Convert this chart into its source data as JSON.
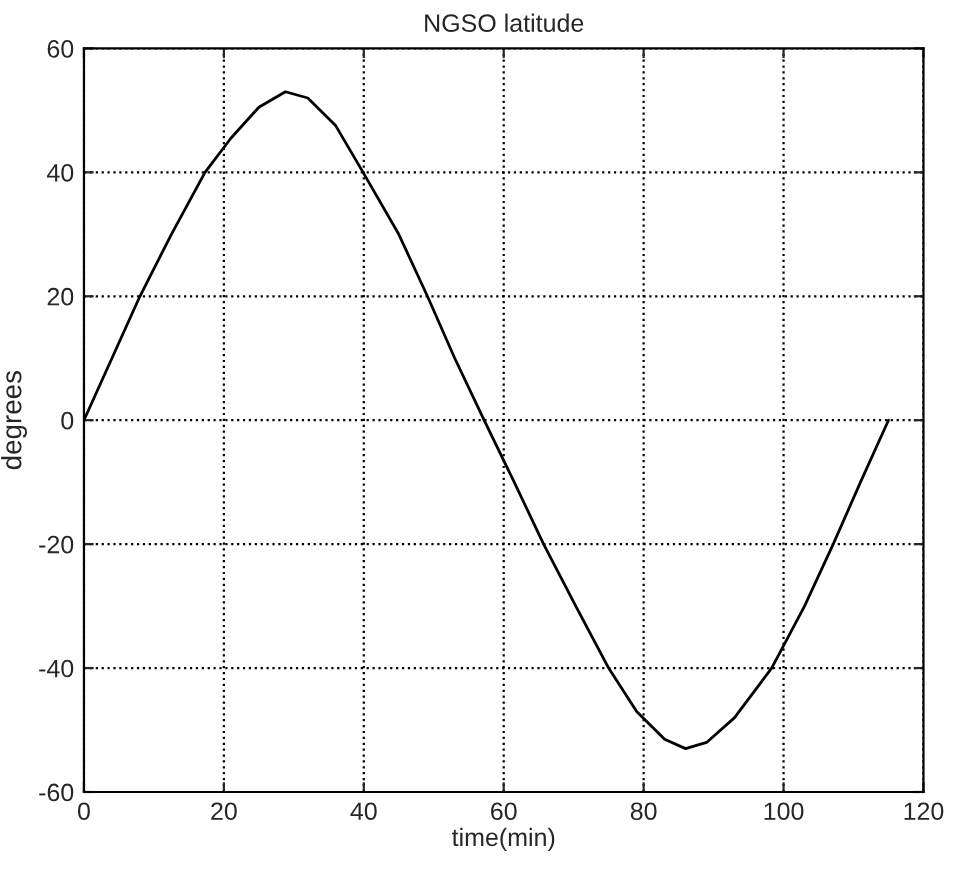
{
  "chart_data": {
    "type": "line",
    "title": "NGSO latitude",
    "xlabel": "time(min)",
    "ylabel": "degrees",
    "x": [
      0,
      8,
      12.5,
      17.3,
      21,
      25,
      28.8,
      32,
      36,
      39.9,
      45,
      49.1,
      53,
      57.2,
      61.5,
      65.7,
      70.3,
      75,
      79,
      83,
      86,
      89,
      93,
      98.3,
      103,
      107.1,
      111,
      115
    ],
    "series": [
      {
        "color": "#000000",
        "values": [
          0,
          20,
          30,
          40,
          45.5,
          50.5,
          53,
          52,
          47.5,
          40,
          30,
          20,
          10,
          0,
          -10,
          -20,
          -30,
          -40,
          -47,
          -51.5,
          -53,
          -52,
          -48,
          -40,
          -30,
          -20,
          -10,
          0
        ]
      }
    ],
    "xlim": [
      0,
      120
    ],
    "xticks": [
      0,
      20,
      40,
      60,
      80,
      100,
      120
    ],
    "ylim": [
      -60,
      60
    ],
    "yticks": [
      -60,
      -40,
      -20,
      0,
      20,
      40,
      60
    ],
    "grid": true,
    "line_style": "solid"
  }
}
